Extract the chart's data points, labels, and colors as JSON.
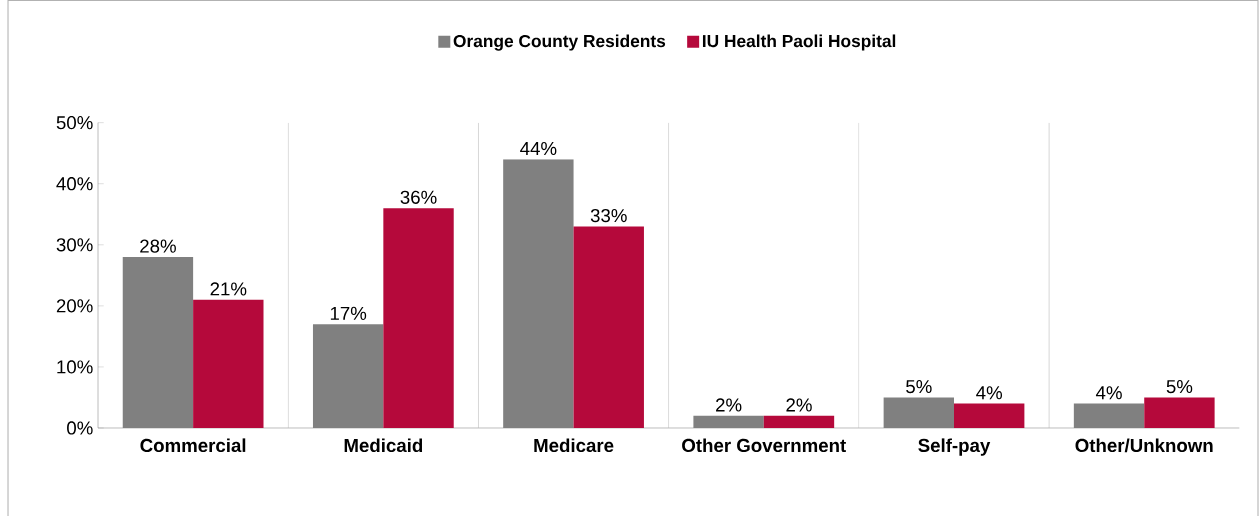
{
  "chart_data": {
    "type": "bar",
    "categories": [
      "Commercial",
      "Medicaid",
      "Medicare",
      "Other Government",
      "Self-pay",
      "Other/Unknown"
    ],
    "series": [
      {
        "name": "Orange County Residents",
        "color": "#808080",
        "values": [
          28,
          17,
          44,
          2,
          5,
          4
        ],
        "value_labels": [
          "28%",
          "17%",
          "44%",
          "2%",
          "5%",
          "4%"
        ]
      },
      {
        "name": "IU Health Paoli Hospital",
        "color": "#b5093b",
        "values": [
          21,
          36,
          33,
          2,
          4,
          5
        ],
        "value_labels": [
          "21%",
          "36%",
          "33%",
          "2%",
          "4%",
          "5%"
        ]
      }
    ],
    "ylim": [
      0,
      50
    ],
    "yticks": [
      {
        "value": 0,
        "label": "0%"
      },
      {
        "value": 10,
        "label": "10%"
      },
      {
        "value": 20,
        "label": "20%"
      },
      {
        "value": 30,
        "label": "30%"
      },
      {
        "value": 40,
        "label": "40%"
      },
      {
        "value": 50,
        "label": "50%"
      }
    ],
    "legend": "top"
  }
}
